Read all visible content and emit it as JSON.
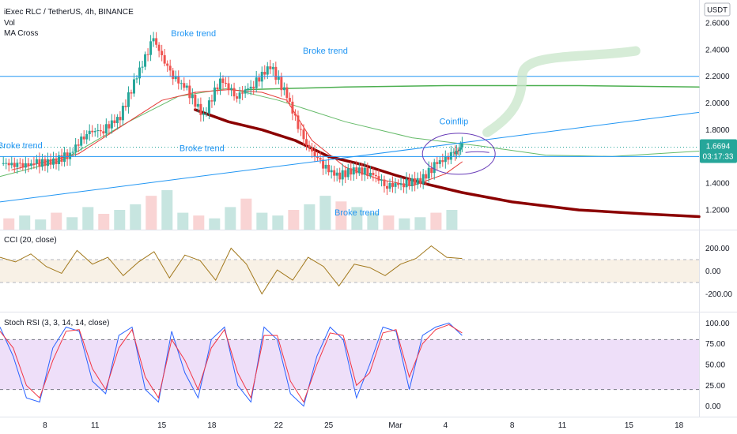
{
  "chart_data": [
    {
      "type": "candlestick",
      "title": "iExec RLC / TetherUS, 4h, BINANCE",
      "legend": [
        "Vol",
        "MA Cross"
      ],
      "currency_button": "USDT",
      "ylim": [
        1.1,
        2.7
      ],
      "y_ticks": [
        "2.6000",
        "2.4000",
        "2.2000",
        "2.0000",
        "1.8000",
        "1.6000",
        "1.4000",
        "1.2000"
      ],
      "y_tick_values": [
        2.6,
        2.4,
        2.2,
        2.0,
        1.8,
        1.6,
        1.4,
        1.2
      ],
      "price_badge": {
        "value": "1.6694",
        "countdown": "03:17:33",
        "price": 1.6694,
        "color": "#26a69a"
      },
      "x_ticks": [
        "8",
        "11",
        "15",
        "18",
        "22",
        "25",
        "Mar",
        "4",
        "8",
        "11",
        "15",
        "18"
      ],
      "x_tick_days": [
        8,
        11,
        15,
        18,
        22,
        25,
        29,
        32,
        36,
        39,
        43,
        46
      ],
      "x_start_day": 5.3,
      "x_end_day": 47.2,
      "annotations": [
        "Broke trend",
        "Broke trend",
        "Broke trend",
        "Broke trend",
        "Broke trend",
        "Coinflip"
      ],
      "price_series": [
        {
          "day": 5.5,
          "price": 1.55
        },
        {
          "day": 6.5,
          "price": 1.53
        },
        {
          "day": 7.5,
          "price": 1.55
        },
        {
          "day": 8.5,
          "price": 1.56
        },
        {
          "day": 9.5,
          "price": 1.62
        },
        {
          "day": 10.5,
          "price": 1.78
        },
        {
          "day": 11.5,
          "price": 1.8
        },
        {
          "day": 12.5,
          "price": 1.9
        },
        {
          "day": 13.5,
          "price": 2.2
        },
        {
          "day": 14.5,
          "price": 2.48
        },
        {
          "day": 15.5,
          "price": 2.22
        },
        {
          "day": 16.5,
          "price": 2.1
        },
        {
          "day": 17.5,
          "price": 1.9
        },
        {
          "day": 18.5,
          "price": 2.18
        },
        {
          "day": 19.5,
          "price": 2.05
        },
        {
          "day": 20.5,
          "price": 2.14
        },
        {
          "day": 21.5,
          "price": 2.28
        },
        {
          "day": 22.5,
          "price": 2.05
        },
        {
          "day": 23.5,
          "price": 1.72
        },
        {
          "day": 24.5,
          "price": 1.55
        },
        {
          "day": 25.5,
          "price": 1.45
        },
        {
          "day": 26.5,
          "price": 1.5
        },
        {
          "day": 27.5,
          "price": 1.48
        },
        {
          "day": 28.5,
          "price": 1.38
        },
        {
          "day": 29.5,
          "price": 1.4
        },
        {
          "day": 30.5,
          "price": 1.42
        },
        {
          "day": 31.5,
          "price": 1.55
        },
        {
          "day": 32.5,
          "price": 1.62
        },
        {
          "day": 33.0,
          "price": 1.67
        }
      ],
      "ma_fast": [
        {
          "day": 6,
          "price": 1.5
        },
        {
          "day": 10,
          "price": 1.62
        },
        {
          "day": 13,
          "price": 1.86
        },
        {
          "day": 15,
          "price": 2.02
        },
        {
          "day": 17,
          "price": 2.08
        },
        {
          "day": 19,
          "price": 2.1
        },
        {
          "day": 21,
          "price": 2.08
        },
        {
          "day": 22.5,
          "price": 2.02
        },
        {
          "day": 24,
          "price": 1.72
        },
        {
          "day": 26,
          "price": 1.52
        },
        {
          "day": 28,
          "price": 1.43
        },
        {
          "day": 30,
          "price": 1.38
        },
        {
          "day": 32,
          "price": 1.47
        },
        {
          "day": 33,
          "price": 1.56
        }
      ],
      "ma_slow": [
        {
          "day": 17,
          "price": 1.95
        },
        {
          "day": 19,
          "price": 1.86
        },
        {
          "day": 21,
          "price": 1.8
        },
        {
          "day": 23,
          "price": 1.72
        },
        {
          "day": 25,
          "price": 1.6
        },
        {
          "day": 27,
          "price": 1.54
        },
        {
          "day": 29,
          "price": 1.46
        },
        {
          "day": 31,
          "price": 1.39
        },
        {
          "day": 33,
          "price": 1.33
        },
        {
          "day": 36,
          "price": 1.26
        },
        {
          "day": 40,
          "price": 1.2
        },
        {
          "day": 44,
          "price": 1.17
        },
        {
          "day": 47.2,
          "price": 1.15
        }
      ],
      "ma_long": [
        {
          "day": 5.3,
          "price": 1.45
        },
        {
          "day": 9,
          "price": 1.57
        },
        {
          "day": 13,
          "price": 1.86
        },
        {
          "day": 16,
          "price": 2.05
        },
        {
          "day": 19,
          "price": 2.11
        },
        {
          "day": 22,
          "price": 2.02
        },
        {
          "day": 26,
          "price": 1.86
        },
        {
          "day": 30,
          "price": 1.74
        },
        {
          "day": 34,
          "price": 1.68
        },
        {
          "day": 38,
          "price": 1.61
        },
        {
          "day": 42,
          "price": 1.6
        },
        {
          "day": 47.2,
          "price": 1.64
        }
      ],
      "ma_green_flat": [
        {
          "day": 20,
          "price": 2.1
        },
        {
          "day": 26,
          "price": 2.12
        },
        {
          "day": 32,
          "price": 2.13
        },
        {
          "day": 40,
          "price": 2.13
        },
        {
          "day": 47.2,
          "price": 2.12
        }
      ],
      "horizontal_lines": [
        2.2,
        1.6
      ],
      "dotted_line": 1.6694,
      "trendline": {
        "from_day": 5.3,
        "from_price": 1.26,
        "to_day": 47.2,
        "to_price": 1.93
      },
      "volume": [
        20,
        25,
        18,
        30,
        22,
        40,
        28,
        35,
        45,
        60,
        70,
        30,
        25,
        20,
        40,
        55,
        30,
        25,
        35,
        45,
        60,
        50,
        40,
        30,
        25,
        20,
        22,
        30,
        35
      ]
    },
    {
      "type": "line",
      "title": "CCI (20, close)",
      "y_ticks": [
        "200.00",
        "0.00",
        "-200.00"
      ],
      "y_tick_values": [
        200,
        0,
        -200
      ],
      "band": [
        -100,
        100
      ],
      "ylim": [
        -300,
        300
      ],
      "series": [
        {
          "values": [
            120,
            80,
            150,
            40,
            -20,
            180,
            60,
            120,
            -40,
            80,
            170,
            -60,
            140,
            90,
            -80,
            200,
            60,
            -200,
            10,
            -80,
            120,
            40,
            -130,
            60,
            30,
            -40,
            60,
            110,
            220,
            120,
            110
          ]
        }
      ]
    },
    {
      "type": "line",
      "title": "Stoch RSI (3, 3, 14, 14, close)",
      "y_ticks": [
        "100.00",
        "75.00",
        "50.00",
        "25.00",
        "0.00"
      ],
      "y_tick_values": [
        100,
        75,
        50,
        25,
        0
      ],
      "band": [
        20,
        80
      ],
      "ylim": [
        -5,
        105
      ],
      "series": [
        {
          "values": [
            95,
            60,
            10,
            5,
            70,
            95,
            90,
            30,
            15,
            85,
            95,
            20,
            5,
            90,
            40,
            10,
            80,
            95,
            25,
            5,
            95,
            80,
            15,
            0,
            60,
            95,
            80,
            10,
            50,
            95,
            90,
            20,
            85,
            95,
            100,
            85
          ],
          "color": "#2962ff"
        },
        {
          "values": [
            90,
            70,
            25,
            10,
            55,
            90,
            92,
            45,
            20,
            70,
            92,
            35,
            10,
            80,
            55,
            20,
            70,
            92,
            40,
            10,
            85,
            85,
            30,
            5,
            50,
            88,
            85,
            25,
            40,
            88,
            92,
            35,
            75,
            92,
            98,
            88
          ],
          "color": "#f23645"
        }
      ]
    }
  ]
}
